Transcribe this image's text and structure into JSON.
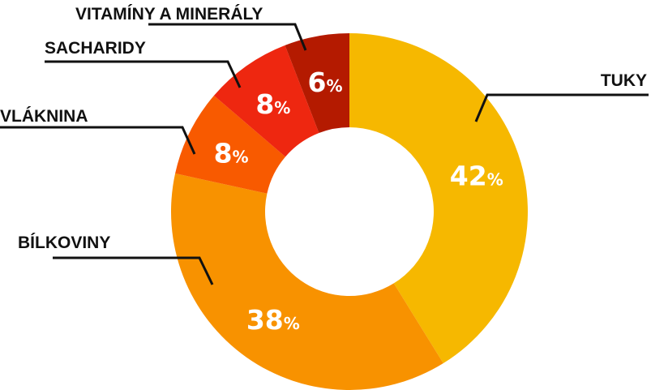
{
  "chart_data": {
    "type": "pie",
    "variant": "donut",
    "start": "top, clockwise",
    "legend": "none (leader-line labels)",
    "percent_symbol": "%",
    "slices": [
      {
        "label": "TUKY",
        "value": 42,
        "value_label": "42",
        "color": "#F6B800"
      },
      {
        "label": "BÍLKOVINY",
        "value": 38,
        "value_label": "38",
        "color": "#F89200"
      },
      {
        "label": "VLÁKNINA",
        "value": 8,
        "value_label": "8",
        "color": "#F85A00"
      },
      {
        "label": "SACHARIDY",
        "value": 8,
        "value_label": "8",
        "color": "#EE2710"
      },
      {
        "label": "VITAMÍNY A MINERÁLY",
        "value": 6,
        "value_label": "6",
        "color": "#B41A00"
      }
    ]
  }
}
